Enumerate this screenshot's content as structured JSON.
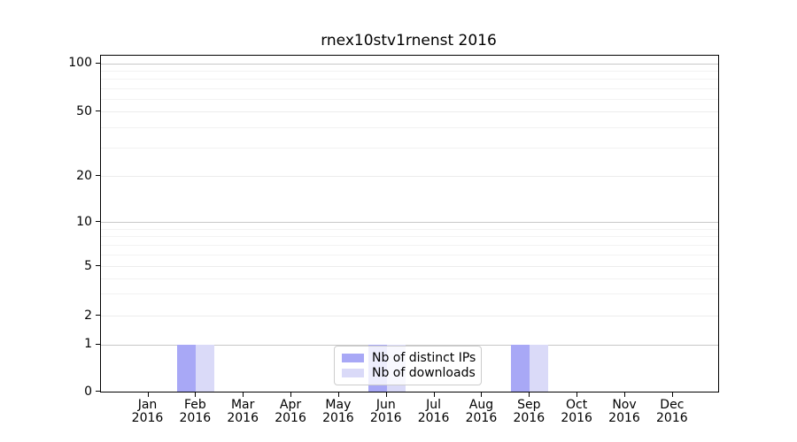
{
  "figure": {
    "title": "rnex10stv1rnenst 2016"
  },
  "chart_data": {
    "type": "bar",
    "title": "rnex10stv1rnenst 2016",
    "categories": [
      "Jan",
      "Feb",
      "Mar",
      "Apr",
      "May",
      "Jun",
      "Jul",
      "Aug",
      "Sep",
      "Oct",
      "Nov",
      "Dec"
    ],
    "x_year_label": "2016",
    "series": [
      {
        "name": "Nb of distinct IPs",
        "color": "#a8a8f6",
        "values": [
          0,
          1,
          0,
          0,
          0,
          1,
          0,
          0,
          1,
          0,
          0,
          0
        ]
      },
      {
        "name": "Nb of downloads",
        "color": "#dadaf8",
        "values": [
          0,
          1,
          0,
          0,
          0,
          1,
          0,
          0,
          1,
          0,
          0,
          0
        ]
      }
    ],
    "y_axis": {
      "scale": "symlog-like",
      "tick_values": [
        0,
        1,
        2,
        5,
        10,
        20,
        50,
        100
      ],
      "tick_labels": [
        "0",
        "1",
        "2",
        "5",
        "10",
        "20",
        "50",
        "100"
      ],
      "major_decade_values": [
        1,
        10,
        100
      ],
      "minor_values": [
        3,
        4,
        6,
        7,
        8,
        9,
        30,
        40,
        60,
        70,
        80,
        90
      ],
      "ylim": [
        0,
        100
      ]
    },
    "grid": true,
    "legend": {
      "position": "lower-center",
      "entries": [
        "Nb of distinct IPs",
        "Nb of downloads"
      ]
    }
  }
}
